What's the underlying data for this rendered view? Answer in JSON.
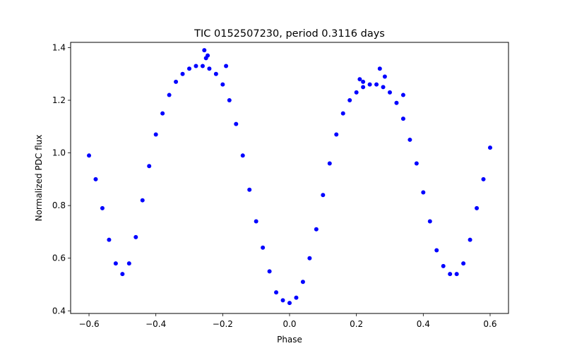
{
  "chart_data": {
    "type": "scatter",
    "title": "TIC 0152507230, period 0.3116 days",
    "xlabel": "Phase",
    "ylabel": "Normalized PDC flux",
    "xlim": [
      -0.655,
      0.655
    ],
    "ylim": [
      0.39,
      1.42
    ],
    "xticks": [
      -0.6,
      -0.4,
      -0.2,
      0.0,
      0.2,
      0.4,
      0.6
    ],
    "xtick_labels": [
      "−0.6",
      "−0.4",
      "−0.2",
      "0.0",
      "0.2",
      "0.4",
      "0.6"
    ],
    "yticks": [
      0.4,
      0.6,
      0.8,
      1.0,
      1.2,
      1.4
    ],
    "ytick_labels": [
      "0.4",
      "0.6",
      "0.8",
      "1.0",
      "1.2",
      "1.4"
    ],
    "grid": false,
    "legend": null,
    "marker_color": "#0000ff",
    "series": [
      {
        "x": [
          -0.6,
          -0.58,
          -0.56,
          -0.54,
          -0.52,
          -0.5,
          -0.48,
          -0.46,
          -0.44,
          -0.42,
          -0.4,
          -0.38,
          -0.36,
          -0.34,
          -0.32,
          -0.3,
          -0.28,
          -0.26,
          -0.24,
          -0.22,
          -0.2,
          -0.18,
          -0.16,
          -0.14,
          -0.12,
          -0.1,
          -0.08,
          -0.06,
          -0.04,
          -0.02,
          0.0,
          0.02,
          0.04,
          0.06,
          0.08,
          0.1,
          0.12,
          0.14,
          0.16,
          0.18,
          0.2,
          0.22,
          0.24,
          0.26,
          0.28,
          0.3,
          0.32,
          0.34,
          0.36,
          0.38,
          0.4,
          0.42,
          0.44,
          0.46,
          0.48,
          0.5,
          0.52,
          0.54,
          0.56,
          0.58,
          0.6,
          -0.255,
          -0.245,
          -0.25,
          -0.19,
          0.27,
          0.285,
          0.21,
          0.22,
          0.34
        ],
        "y": [
          0.99,
          0.9,
          0.79,
          0.67,
          0.58,
          0.54,
          0.58,
          0.68,
          0.82,
          0.95,
          1.07,
          1.15,
          1.22,
          1.27,
          1.3,
          1.32,
          1.33,
          1.33,
          1.32,
          1.3,
          1.26,
          1.2,
          1.11,
          0.99,
          0.86,
          0.74,
          0.64,
          0.55,
          0.47,
          0.44,
          0.43,
          0.45,
          0.51,
          0.6,
          0.71,
          0.84,
          0.96,
          1.07,
          1.15,
          1.2,
          1.23,
          1.25,
          1.26,
          1.26,
          1.25,
          1.23,
          1.19,
          1.13,
          1.05,
          0.96,
          0.85,
          0.74,
          0.63,
          0.57,
          0.54,
          0.54,
          0.58,
          0.67,
          0.79,
          0.9,
          1.02,
          1.39,
          1.37,
          1.36,
          1.33,
          1.32,
          1.29,
          1.28,
          1.27,
          1.22
        ]
      }
    ]
  }
}
